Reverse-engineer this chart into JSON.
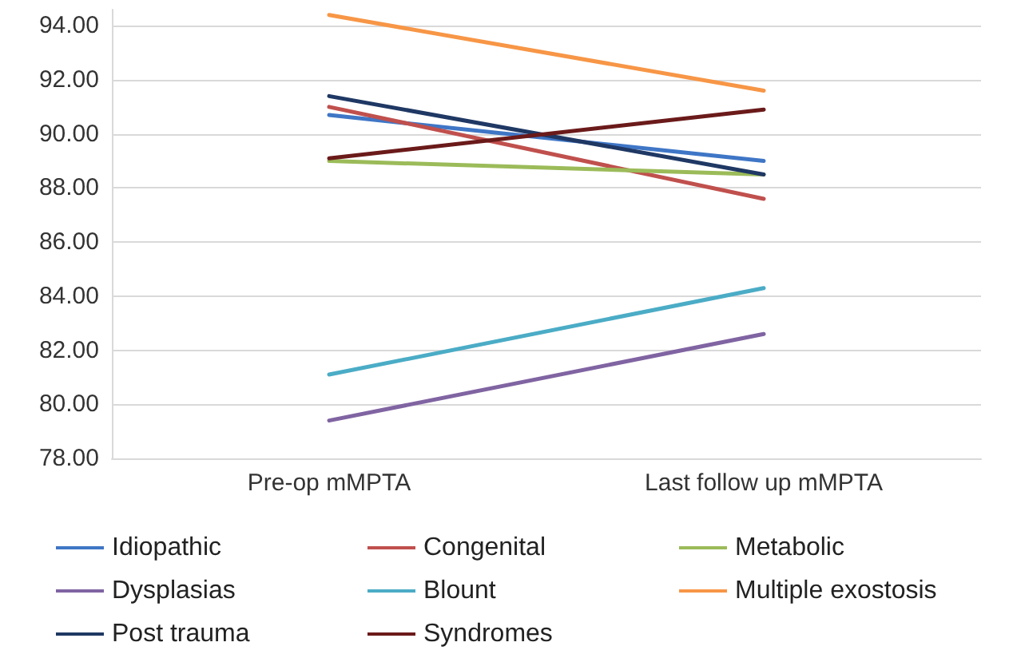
{
  "chart_data": {
    "type": "line",
    "categories": [
      "Pre-op mMPTA",
      "Last follow up mMPTA"
    ],
    "series": [
      {
        "name": "Idiopathic",
        "color": "#3f76c6",
        "values": [
          90.7,
          89.0
        ]
      },
      {
        "name": "Congenital",
        "color": "#c0504d",
        "values": [
          91.0,
          87.6
        ]
      },
      {
        "name": "Metabolic",
        "color": "#9bbb59",
        "values": [
          89.0,
          88.5
        ]
      },
      {
        "name": "Dysplasias",
        "color": "#8064a2",
        "values": [
          79.4,
          82.6
        ]
      },
      {
        "name": "Blount",
        "color": "#4bacc6",
        "values": [
          81.1,
          84.3
        ]
      },
      {
        "name": "Multiple exostosis",
        "color": "#f79646",
        "values": [
          94.4,
          91.6
        ]
      },
      {
        "name": "Post trauma",
        "color": "#1f3864",
        "values": [
          91.4,
          88.5
        ]
      },
      {
        "name": "Syndromes",
        "color": "#6b1a1a",
        "values": [
          89.1,
          90.9
        ]
      }
    ],
    "ylim": [
      78,
      94.6
    ],
    "yticks": [
      {
        "value": 78,
        "label": "78.00"
      },
      {
        "value": 80,
        "label": "80.00"
      },
      {
        "value": 82,
        "label": "82.00"
      },
      {
        "value": 84,
        "label": "84.00"
      },
      {
        "value": 86,
        "label": "86.00"
      },
      {
        "value": 88,
        "label": "88.00"
      },
      {
        "value": 90,
        "label": "90.00"
      },
      {
        "value": 92,
        "label": "92.00"
      },
      {
        "value": 94,
        "label": "94.00"
      }
    ],
    "grid": "y",
    "legend": "bottom",
    "marker": "none",
    "line_style": "solid"
  }
}
